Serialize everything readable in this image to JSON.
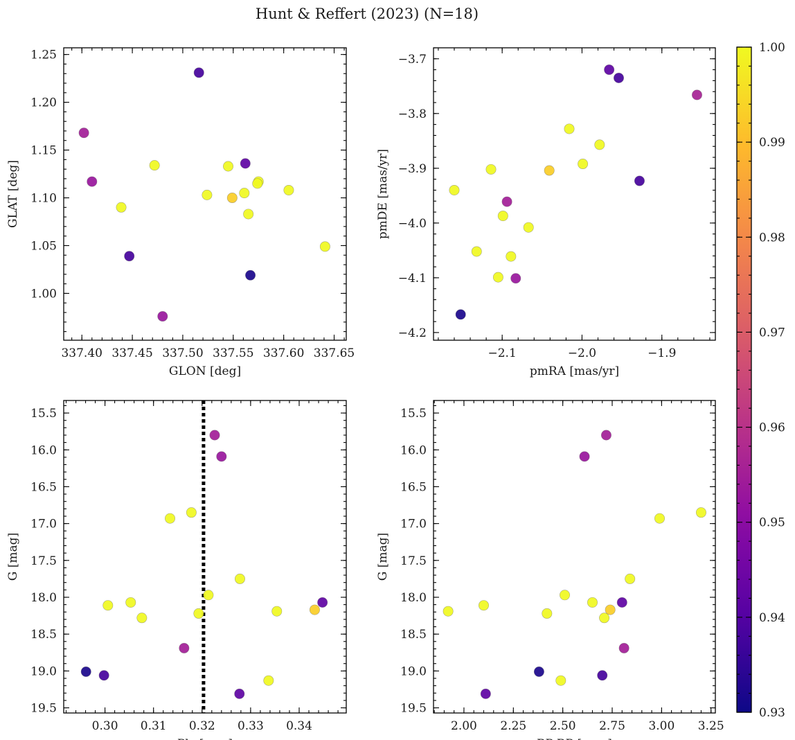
{
  "chart_data": {
    "type": "scatter",
    "title": "Hunt & Reffert (2023) (N=18)",
    "colormap": "plasma",
    "colorbar": {
      "min": 0.93,
      "max": 1.0,
      "ticks": [
        "0.93",
        "0.94",
        "0.95",
        "0.96",
        "0.97",
        "0.98",
        "0.99",
        "1.00"
      ]
    },
    "panels": [
      {
        "id": "p1",
        "xlabel": "GLON [deg]",
        "ylabel": "GLAT [deg]",
        "xlim": [
          337.382,
          337.662
        ],
        "ylim": [
          0.951,
          1.257
        ],
        "xticks": [
          337.4,
          337.45,
          337.5,
          337.55,
          337.6,
          337.65
        ],
        "xtick_labels": [
          "337.40",
          "337.45",
          "337.50",
          "337.55",
          "337.60",
          "337.65"
        ],
        "yticks": [
          1.0,
          1.05,
          1.1,
          1.15,
          1.2,
          1.25
        ],
        "ytick_labels": [
          "1.00",
          "1.05",
          "1.10",
          "1.15",
          "1.20",
          "1.25"
        ],
        "x_minor": 0.01,
        "y_minor": 0.01,
        "points": [
          {
            "x": 337.516,
            "y": 1.231,
            "c": 0.938
          },
          {
            "x": 337.402,
            "y": 1.168,
            "c": 0.955
          },
          {
            "x": 337.41,
            "y": 1.117,
            "c": 0.953
          },
          {
            "x": 337.472,
            "y": 1.134,
            "c": 1.0
          },
          {
            "x": 337.562,
            "y": 1.136,
            "c": 0.942
          },
          {
            "x": 337.545,
            "y": 1.133,
            "c": 1.0
          },
          {
            "x": 337.575,
            "y": 1.117,
            "c": 1.0
          },
          {
            "x": 337.574,
            "y": 1.115,
            "c": 1.0
          },
          {
            "x": 337.561,
            "y": 1.105,
            "c": 1.0
          },
          {
            "x": 337.524,
            "y": 1.103,
            "c": 1.0
          },
          {
            "x": 337.605,
            "y": 1.108,
            "c": 1.0
          },
          {
            "x": 337.549,
            "y": 1.1,
            "c": 0.993
          },
          {
            "x": 337.439,
            "y": 1.09,
            "c": 1.0
          },
          {
            "x": 337.565,
            "y": 1.083,
            "c": 1.0
          },
          {
            "x": 337.641,
            "y": 1.049,
            "c": 1.0
          },
          {
            "x": 337.447,
            "y": 1.039,
            "c": 0.938
          },
          {
            "x": 337.567,
            "y": 1.019,
            "c": 0.932
          },
          {
            "x": 337.48,
            "y": 0.976,
            "c": 0.953
          }
        ]
      },
      {
        "id": "p2",
        "xlabel": "pmRA [mas/yr]",
        "ylabel": "pmDE [mas/yr]",
        "xlim": [
          -2.186,
          -1.833
        ],
        "ylim": [
          -4.214,
          -3.68
        ],
        "xticks": [
          -2.1,
          -2.0,
          -1.9
        ],
        "xtick_labels": [
          "−2.1",
          "−2.0",
          "−1.9"
        ],
        "yticks": [
          -4.2,
          -4.1,
          -4.0,
          -3.9,
          -3.8,
          -3.7
        ],
        "ytick_labels": [
          "−4.2",
          "−4.1",
          "−4.0",
          "−3.9",
          "−3.8",
          "−3.7"
        ],
        "x_minor": 0.02,
        "y_minor": 0.02,
        "points": [
          {
            "x": -1.966,
            "y": -3.72,
            "c": 0.942
          },
          {
            "x": -1.954,
            "y": -3.735,
            "c": 0.938
          },
          {
            "x": -1.856,
            "y": -3.766,
            "c": 0.956
          },
          {
            "x": -2.016,
            "y": -3.828,
            "c": 1.0
          },
          {
            "x": -1.978,
            "y": -3.857,
            "c": 1.0
          },
          {
            "x": -1.999,
            "y": -3.892,
            "c": 1.0
          },
          {
            "x": -2.114,
            "y": -3.902,
            "c": 1.0
          },
          {
            "x": -2.041,
            "y": -3.904,
            "c": 0.993
          },
          {
            "x": -1.928,
            "y": -3.923,
            "c": 0.938
          },
          {
            "x": -2.16,
            "y": -3.94,
            "c": 1.0
          },
          {
            "x": -2.094,
            "y": -3.961,
            "c": 0.955
          },
          {
            "x": -2.099,
            "y": -3.987,
            "c": 1.0
          },
          {
            "x": -2.067,
            "y": -4.008,
            "c": 1.0
          },
          {
            "x": -2.132,
            "y": -4.052,
            "c": 1.0
          },
          {
            "x": -2.089,
            "y": -4.061,
            "c": 1.0
          },
          {
            "x": -2.105,
            "y": -4.099,
            "c": 1.0
          },
          {
            "x": -2.083,
            "y": -4.101,
            "c": 0.953
          },
          {
            "x": -2.152,
            "y": -4.167,
            "c": 0.932
          }
        ]
      },
      {
        "id": "p3",
        "xlabel": "Plx [mas]",
        "ylabel": "G [mag]",
        "invert_y": true,
        "vline": 0.3203,
        "xlim": [
          0.2915,
          0.3497
        ],
        "ylim": [
          19.57,
          15.33
        ],
        "xticks": [
          0.3,
          0.31,
          0.32,
          0.33,
          0.34
        ],
        "xtick_labels": [
          "0.30",
          "0.31",
          "0.32",
          "0.33",
          "0.34"
        ],
        "yticks": [
          15.5,
          16.0,
          16.5,
          17.0,
          17.5,
          18.0,
          18.5,
          19.0,
          19.5
        ],
        "ytick_labels": [
          "15.5",
          "16.0",
          "16.5",
          "17.0",
          "17.5",
          "18.0",
          "18.5",
          "19.0",
          "19.5"
        ],
        "x_minor": 0.002,
        "y_minor": 0.1,
        "points": [
          {
            "x": 0.3226,
            "y": 15.8,
            "c": 0.955
          },
          {
            "x": 0.324,
            "y": 16.09,
            "c": 0.953
          },
          {
            "x": 0.3134,
            "y": 16.93,
            "c": 1.0
          },
          {
            "x": 0.3178,
            "y": 16.85,
            "c": 1.0
          },
          {
            "x": 0.3278,
            "y": 17.75,
            "c": 1.0
          },
          {
            "x": 0.3213,
            "y": 17.97,
            "c": 1.0
          },
          {
            "x": 0.3053,
            "y": 18.07,
            "c": 1.0
          },
          {
            "x": 0.3006,
            "y": 18.11,
            "c": 1.0
          },
          {
            "x": 0.3448,
            "y": 18.07,
            "c": 0.942
          },
          {
            "x": 0.3432,
            "y": 18.17,
            "c": 0.993
          },
          {
            "x": 0.3354,
            "y": 18.19,
            "c": 1.0
          },
          {
            "x": 0.3193,
            "y": 18.22,
            "c": 1.0
          },
          {
            "x": 0.3076,
            "y": 18.28,
            "c": 1.0
          },
          {
            "x": 0.3163,
            "y": 18.69,
            "c": 0.955
          },
          {
            "x": 0.2961,
            "y": 19.01,
            "c": 0.932
          },
          {
            "x": 0.2998,
            "y": 19.06,
            "c": 0.938
          },
          {
            "x": 0.3337,
            "y": 19.13,
            "c": 1.0
          },
          {
            "x": 0.3277,
            "y": 19.31,
            "c": 0.942
          }
        ]
      },
      {
        "id": "p4",
        "xlabel": "BP-RP [mag]",
        "ylabel": "G [mag]",
        "invert_y": true,
        "xlim": [
          1.846,
          3.272
        ],
        "ylim": [
          19.57,
          15.33
        ],
        "xticks": [
          2.0,
          2.25,
          2.5,
          2.75,
          3.0,
          3.25
        ],
        "xtick_labels": [
          "2.00",
          "2.25",
          "2.50",
          "2.75",
          "3.00",
          "3.25"
        ],
        "yticks": [
          15.5,
          16.0,
          16.5,
          17.0,
          17.5,
          18.0,
          18.5,
          19.0,
          19.5
        ],
        "ytick_labels": [
          "15.5",
          "16.0",
          "16.5",
          "17.0",
          "17.5",
          "18.0",
          "18.5",
          "19.0",
          "19.5"
        ],
        "x_minor": 0.05,
        "y_minor": 0.1,
        "points": [
          {
            "x": 2.72,
            "y": 15.8,
            "c": 0.955
          },
          {
            "x": 2.61,
            "y": 16.09,
            "c": 0.953
          },
          {
            "x": 2.99,
            "y": 16.93,
            "c": 1.0
          },
          {
            "x": 3.2,
            "y": 16.85,
            "c": 1.0
          },
          {
            "x": 2.84,
            "y": 17.75,
            "c": 1.0
          },
          {
            "x": 2.51,
            "y": 17.97,
            "c": 1.0
          },
          {
            "x": 2.65,
            "y": 18.07,
            "c": 1.0
          },
          {
            "x": 2.1,
            "y": 18.11,
            "c": 1.0
          },
          {
            "x": 2.8,
            "y": 18.07,
            "c": 0.942
          },
          {
            "x": 2.74,
            "y": 18.17,
            "c": 0.993
          },
          {
            "x": 1.92,
            "y": 18.19,
            "c": 1.0
          },
          {
            "x": 2.42,
            "y": 18.22,
            "c": 1.0
          },
          {
            "x": 2.71,
            "y": 18.28,
            "c": 1.0
          },
          {
            "x": 2.81,
            "y": 18.69,
            "c": 0.955
          },
          {
            "x": 2.38,
            "y": 19.01,
            "c": 0.932
          },
          {
            "x": 2.7,
            "y": 19.06,
            "c": 0.938
          },
          {
            "x": 2.49,
            "y": 19.13,
            "c": 1.0
          },
          {
            "x": 2.11,
            "y": 19.31,
            "c": 0.942
          }
        ]
      }
    ]
  }
}
